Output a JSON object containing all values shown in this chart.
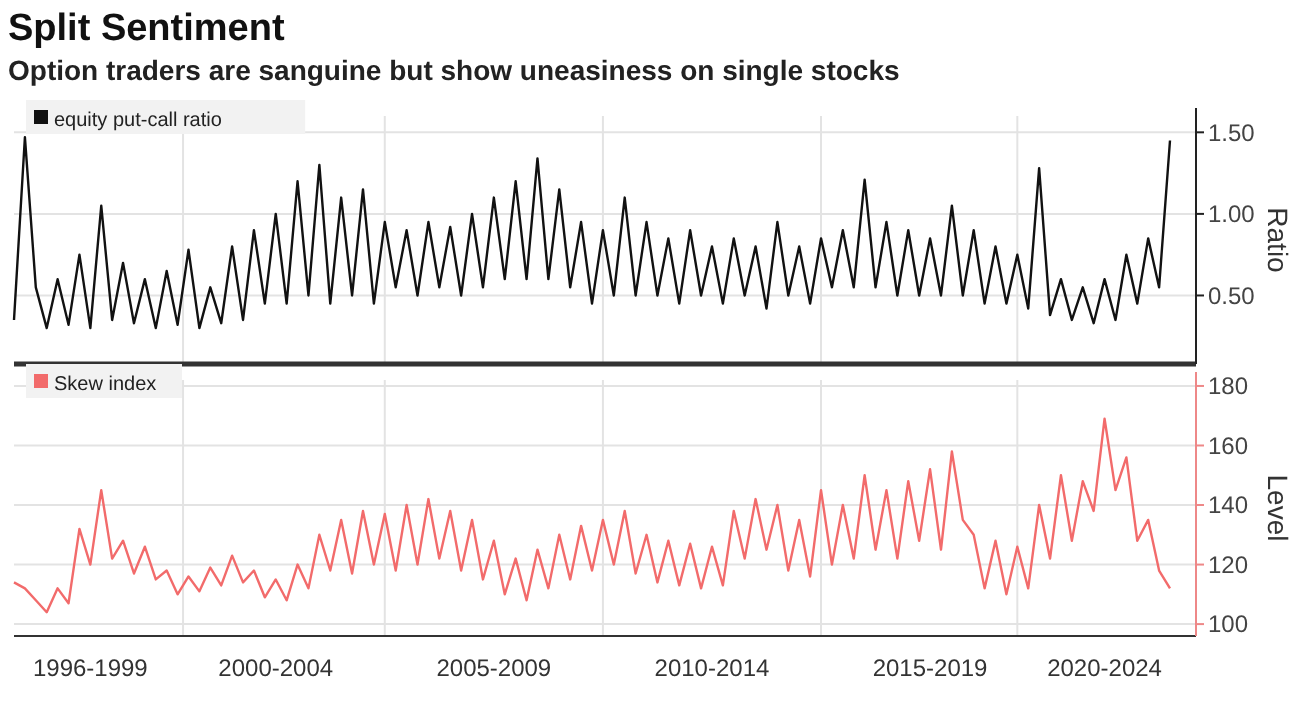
{
  "chart_data": [
    {
      "type": "line",
      "title": "Split Sentiment",
      "subtitle": "Option traders are sanguine but show uneasiness on single stocks",
      "ylabel": "Ratio",
      "grid": true,
      "legend": "top left",
      "tick_labels": "y",
      "categories": [
        null,
        null,
        null,
        null,
        null,
        null,
        null,
        null,
        null,
        null,
        null,
        null,
        null,
        null,
        null,
        null,
        null,
        null,
        null,
        null,
        null,
        null,
        null,
        null,
        null,
        null,
        null,
        null,
        null,
        null,
        null,
        null,
        null,
        null,
        null,
        null,
        null,
        null,
        null,
        null,
        null,
        null,
        null,
        null,
        null,
        null,
        null,
        null,
        null,
        null,
        null,
        null,
        null,
        null,
        null,
        null,
        null,
        null,
        null,
        null,
        null,
        null,
        null,
        null,
        null,
        null,
        null,
        null,
        null,
        null,
        null,
        null,
        null,
        null,
        null,
        null,
        null,
        null,
        null,
        null,
        null,
        null,
        null,
        null,
        null,
        null,
        null,
        null,
        null,
        null,
        null,
        null,
        null,
        null,
        null,
        null,
        null,
        null,
        null,
        null,
        null,
        null,
        null,
        null,
        null,
        null,
        null
      ],
      "ylim": [
        0.08,
        1.6
      ],
      "yticks": [
        {
          "value": 0.5,
          "label": "0.50"
        },
        {
          "value": 1,
          "label": "1.00"
        },
        {
          "value": 1.5,
          "label": "1.50"
        }
      ],
      "series": [
        {
          "name": "equity put-call ratio",
          "color": "#111111",
          "values": [
            0.35,
            1.47,
            0.55,
            0.3,
            0.6,
            0.32,
            0.75,
            0.3,
            1.05,
            0.35,
            0.7,
            0.33,
            0.6,
            0.3,
            0.65,
            0.32,
            0.78,
            0.3,
            0.55,
            0.33,
            0.8,
            0.35,
            0.9,
            0.45,
            1.0,
            0.45,
            1.2,
            0.5,
            1.3,
            0.45,
            1.1,
            0.5,
            1.15,
            0.45,
            0.95,
            0.55,
            0.9,
            0.5,
            0.95,
            0.55,
            0.92,
            0.5,
            1.0,
            0.55,
            1.1,
            0.6,
            1.2,
            0.6,
            1.34,
            0.6,
            1.15,
            0.55,
            0.95,
            0.45,
            0.9,
            0.5,
            1.1,
            0.5,
            0.95,
            0.5,
            0.85,
            0.45,
            0.9,
            0.5,
            0.8,
            0.45,
            0.85,
            0.5,
            0.8,
            0.42,
            0.95,
            0.5,
            0.8,
            0.45,
            0.85,
            0.55,
            0.9,
            0.55,
            1.21,
            0.55,
            0.95,
            0.5,
            0.9,
            0.5,
            0.85,
            0.5,
            1.05,
            0.5,
            0.9,
            0.45,
            0.8,
            0.45,
            0.75,
            0.42,
            1.28,
            0.38,
            0.6,
            0.35,
            0.55,
            0.33,
            0.6,
            0.35,
            0.75,
            0.45,
            0.85,
            0.55,
            1.45
          ]
        }
      ]
    },
    {
      "type": "line",
      "ylabel": "Level",
      "grid": true,
      "legend": "top left",
      "categories": [
        null,
        null,
        null,
        null,
        null,
        null,
        null,
        "1996-1999",
        null,
        null,
        null,
        null,
        null,
        null,
        null,
        null,
        null,
        null,
        null,
        null,
        null,
        null,
        null,
        null,
        "2000-2004",
        null,
        null,
        null,
        null,
        null,
        null,
        null,
        null,
        null,
        null,
        null,
        null,
        null,
        null,
        null,
        null,
        null,
        null,
        null,
        "2005-2009",
        null,
        null,
        null,
        null,
        null,
        null,
        null,
        null,
        null,
        null,
        null,
        null,
        null,
        null,
        null,
        null,
        null,
        null,
        null,
        "2010-2014",
        null,
        null,
        null,
        null,
        null,
        null,
        null,
        null,
        null,
        null,
        null,
        null,
        null,
        null,
        null,
        null,
        null,
        null,
        null,
        "2015-2019",
        null,
        null,
        null,
        null,
        null,
        null,
        null,
        null,
        null,
        null,
        null,
        null,
        null,
        null,
        null,
        "2020-2024",
        null,
        null,
        null,
        null,
        null,
        null
      ],
      "ylim": [
        96,
        182
      ],
      "yticks": [
        100,
        120,
        140,
        160,
        180
      ],
      "series": [
        {
          "name": "Skew index",
          "color": "#f26b6b",
          "values": [
            114,
            112,
            108,
            104,
            112,
            107,
            132,
            120,
            145,
            122,
            128,
            117,
            126,
            115,
            118,
            110,
            116,
            111,
            119,
            113,
            123,
            114,
            118,
            109,
            115,
            108,
            120,
            112,
            130,
            118,
            135,
            117,
            138,
            120,
            137,
            118,
            140,
            120,
            142,
            122,
            138,
            118,
            135,
            115,
            128,
            110,
            122,
            108,
            125,
            112,
            130,
            115,
            133,
            118,
            135,
            120,
            138,
            117,
            130,
            114,
            128,
            113,
            127,
            112,
            126,
            113,
            138,
            122,
            142,
            125,
            140,
            118,
            135,
            116,
            145,
            120,
            140,
            122,
            150,
            125,
            145,
            122,
            148,
            128,
            152,
            125,
            158,
            135,
            130,
            112,
            128,
            110,
            126,
            112,
            140,
            122,
            150,
            128,
            148,
            138,
            169,
            145,
            156,
            128,
            135,
            118,
            112
          ]
        }
      ]
    }
  ]
}
